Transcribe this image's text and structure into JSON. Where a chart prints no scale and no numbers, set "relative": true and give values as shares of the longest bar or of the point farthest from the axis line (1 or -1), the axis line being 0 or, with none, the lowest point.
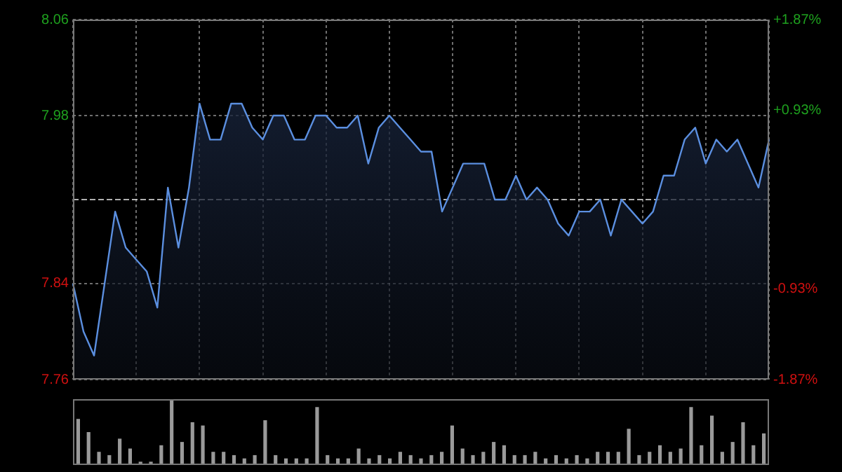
{
  "chart_data": [
    {
      "type": "area",
      "categories": [
        null,
        null,
        null,
        null,
        null,
        null,
        null,
        null,
        null,
        null,
        null,
        null,
        null,
        null,
        null,
        null,
        null,
        null,
        null,
        null,
        null,
        null,
        null,
        null,
        null,
        null,
        null,
        null,
        null,
        null,
        null,
        null,
        null,
        null,
        null,
        null,
        null,
        null,
        null,
        null,
        null,
        null,
        null,
        null,
        null,
        null,
        null,
        null,
        null,
        null,
        null,
        null,
        null,
        null,
        null,
        null,
        null,
        null,
        null,
        null,
        null,
        null,
        null,
        null,
        null,
        null,
        null
      ],
      "series": [
        {
          "color": "#5b8fe0",
          "values": [
            7.84,
            7.8,
            7.78,
            7.84,
            7.9,
            7.87,
            7.86,
            7.85,
            7.82,
            7.92,
            7.87,
            7.92,
            7.99,
            7.96,
            7.96,
            7.99,
            7.99,
            7.97,
            7.96,
            7.98,
            7.98,
            7.96,
            7.96,
            7.98,
            7.98,
            7.97,
            7.97,
            7.98,
            7.94,
            7.97,
            7.98,
            7.97,
            7.96,
            7.95,
            7.95,
            7.9,
            7.92,
            7.94,
            7.94,
            7.94,
            7.91,
            7.91,
            7.93,
            7.91,
            7.92,
            7.91,
            7.89,
            7.88,
            7.9,
            7.9,
            7.91,
            7.88,
            7.91,
            7.9,
            7.89,
            7.9,
            7.93,
            7.93,
            7.96,
            7.97,
            7.94,
            7.96,
            7.95,
            7.96,
            7.94,
            7.92,
            7.96
          ]
        }
      ],
      "ylim": [
        7.76,
        8.06
      ],
      "yticks": [
        7.76,
        7.84,
        7.98,
        8.06
      ],
      "y2lim": [
        -1.87,
        1.87
      ],
      "y2ticks": [
        {
          "value": -1.87,
          "label": "-1.87%"
        },
        {
          "value": -0.93,
          "label": "-0.93%"
        },
        {
          "value": 0.93,
          "label": "+0.93%"
        },
        {
          "value": 1.87,
          "label": "+1.87%"
        }
      ],
      "ref_lines": [
        {
          "axis": "y2",
          "value": 0,
          "line_style": "dashed"
        }
      ],
      "grid": true,
      "legend": false
    },
    {
      "type": "bar",
      "relative": true,
      "color": "#9a9a9a",
      "categories": [
        null,
        null,
        null,
        null,
        null,
        null,
        null,
        null,
        null,
        null,
        null,
        null,
        null,
        null,
        null,
        null,
        null,
        null,
        null,
        null,
        null,
        null,
        null,
        null,
        null,
        null,
        null,
        null,
        null,
        null,
        null,
        null,
        null,
        null,
        null,
        null,
        null,
        null,
        null,
        null,
        null,
        null,
        null,
        null,
        null,
        null,
        null,
        null,
        null,
        null,
        null,
        null,
        null,
        null,
        null,
        null,
        null,
        null,
        null,
        null,
        null,
        null,
        null,
        null,
        null,
        null,
        null
      ],
      "values": [
        0.7,
        0.5,
        0.2,
        0.15,
        0.4,
        0.25,
        0.05,
        0.05,
        0.3,
        1.0,
        0.35,
        0.65,
        0.6,
        0.2,
        0.2,
        0.15,
        0.1,
        0.15,
        0.68,
        0.15,
        0.1,
        0.1,
        0.1,
        0.88,
        0.15,
        0.1,
        0.1,
        0.25,
        0.1,
        0.15,
        0.1,
        0.2,
        0.15,
        0.1,
        0.15,
        0.2,
        0.6,
        0.25,
        0.15,
        0.2,
        0.35,
        0.3,
        0.15,
        0.15,
        0.2,
        0.1,
        0.15,
        0.1,
        0.15,
        0.1,
        0.2,
        0.2,
        0.2,
        0.55,
        0.15,
        0.2,
        0.3,
        0.2,
        0.25,
        0.88,
        0.3,
        0.75,
        0.2,
        0.35,
        0.65,
        0.3,
        0.48
      ],
      "legend": false
    }
  ]
}
